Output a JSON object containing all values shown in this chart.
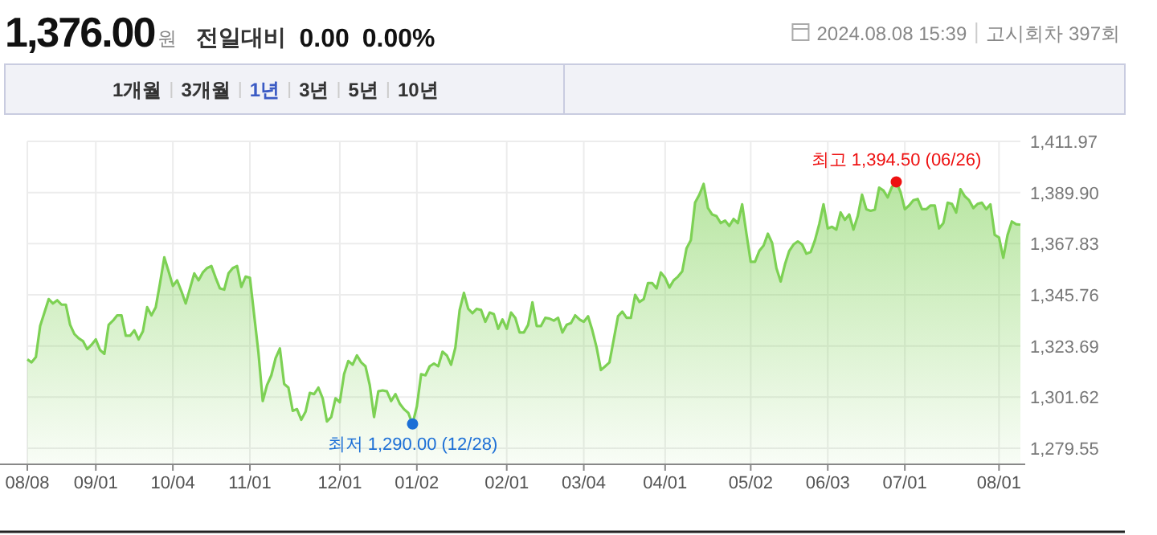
{
  "chart_data": {
    "type": "area",
    "title": "1,376.00",
    "categories": [
      "08/08",
      null,
      null,
      null,
      null,
      null,
      null,
      null,
      null,
      null,
      null,
      null,
      null,
      null,
      null,
      null,
      "09/01",
      null,
      null,
      null,
      null,
      null,
      null,
      null,
      null,
      null,
      null,
      null,
      null,
      null,
      null,
      null,
      null,
      null,
      "10/04",
      null,
      null,
      null,
      null,
      null,
      null,
      null,
      null,
      null,
      null,
      null,
      null,
      null,
      null,
      null,
      null,
      null,
      "11/01",
      null,
      null,
      null,
      null,
      null,
      null,
      null,
      null,
      null,
      null,
      null,
      null,
      null,
      null,
      null,
      null,
      null,
      null,
      null,
      null,
      "12/01",
      null,
      null,
      null,
      null,
      null,
      null,
      null,
      null,
      null,
      null,
      null,
      null,
      null,
      null,
      null,
      null,
      null,
      "01/02",
      null,
      null,
      null,
      null,
      null,
      null,
      null,
      null,
      null,
      null,
      null,
      null,
      null,
      null,
      null,
      null,
      null,
      null,
      null,
      null,
      "02/01",
      null,
      null,
      null,
      null,
      null,
      null,
      null,
      null,
      null,
      null,
      null,
      null,
      null,
      null,
      null,
      null,
      null,
      "03/04",
      null,
      null,
      null,
      null,
      null,
      null,
      null,
      null,
      null,
      null,
      null,
      null,
      null,
      null,
      null,
      null,
      null,
      null,
      "04/01",
      null,
      null,
      null,
      null,
      null,
      null,
      null,
      null,
      null,
      null,
      null,
      null,
      null,
      null,
      null,
      null,
      null,
      null,
      null,
      "05/02",
      null,
      null,
      null,
      null,
      null,
      null,
      null,
      null,
      null,
      null,
      null,
      null,
      null,
      null,
      null,
      null,
      null,
      "06/03",
      null,
      null,
      null,
      null,
      null,
      null,
      null,
      null,
      null,
      null,
      null,
      null,
      null,
      null,
      null,
      null,
      null,
      "07/01",
      null,
      null,
      null,
      null,
      null,
      null,
      null,
      null,
      null,
      null,
      null,
      null,
      null,
      null,
      null,
      null,
      null,
      null,
      null,
      null,
      null,
      "08/01",
      null,
      null,
      null,
      null,
      null
    ],
    "series": [
      {
        "color": "#7dd154",
        "values": [
          1317.9,
          1316.6,
          1318.9,
          1332.3,
          1338.1,
          1343.9,
          1342.0,
          1343.4,
          1341.5,
          1341.5,
          1332.8,
          1328.8,
          1327.0,
          1325.8,
          1322.3,
          1324.2,
          1326.5,
          1321.9,
          1320.3,
          1332.8,
          1334.6,
          1336.9,
          1336.9,
          1328.1,
          1328.1,
          1330.4,
          1326.5,
          1330.0,
          1340.4,
          1336.9,
          1340.4,
          1350.8,
          1361.9,
          1355.9,
          1349.6,
          1352.0,
          1347.3,
          1342.0,
          1348.5,
          1355.0,
          1352.0,
          1355.4,
          1357.3,
          1358.2,
          1353.1,
          1348.5,
          1348.0,
          1355.0,
          1357.3,
          1358.2,
          1349.2,
          1353.6,
          1353.1,
          1336.9,
          1320.7,
          1299.9,
          1306.8,
          1311.0,
          1318.4,
          1322.6,
          1307.3,
          1305.7,
          1295.7,
          1296.4,
          1291.8,
          1295.3,
          1303.4,
          1302.9,
          1305.7,
          1301.1,
          1291.1,
          1293.0,
          1301.1,
          1299.4,
          1311.5,
          1317.2,
          1315.6,
          1319.6,
          1316.6,
          1314.9,
          1306.8,
          1293.0,
          1304.1,
          1304.5,
          1304.1,
          1299.9,
          1302.9,
          1298.8,
          1296.4,
          1294.8,
          1290.0,
          1297.6,
          1311.5,
          1311.0,
          1314.9,
          1316.1,
          1314.9,
          1321.2,
          1319.6,
          1315.6,
          1323.0,
          1339.2,
          1346.6,
          1339.7,
          1337.8,
          1339.7,
          1339.2,
          1334.1,
          1338.1,
          1337.4,
          1331.1,
          1335.1,
          1331.1,
          1338.1,
          1335.8,
          1329.5,
          1329.5,
          1332.8,
          1342.5,
          1332.3,
          1332.3,
          1335.8,
          1335.5,
          1334.6,
          1335.8,
          1329.5,
          1332.8,
          1333.5,
          1336.9,
          1335.1,
          1334.1,
          1336.5,
          1330.4,
          1323.0,
          1313.3,
          1314.9,
          1316.6,
          1326.5,
          1336.5,
          1338.5,
          1335.8,
          1335.8,
          1345.7,
          1342.7,
          1343.9,
          1350.8,
          1350.8,
          1348.5,
          1355.4,
          1353.1,
          1348.9,
          1352.0,
          1353.6,
          1355.9,
          1365.8,
          1369.3,
          1385.5,
          1389.0,
          1393.6,
          1383.2,
          1380.4,
          1379.7,
          1376.7,
          1377.8,
          1375.5,
          1378.5,
          1376.7,
          1384.8,
          1372.1,
          1360.0,
          1360.0,
          1364.7,
          1367.0,
          1372.1,
          1368.1,
          1357.3,
          1351.5,
          1358.9,
          1364.7,
          1367.5,
          1368.8,
          1367.5,
          1363.5,
          1364.2,
          1369.3,
          1376.2,
          1384.8,
          1374.4,
          1375.1,
          1373.9,
          1381.3,
          1378.1,
          1380.4,
          1373.9,
          1379.7,
          1389.0,
          1382.7,
          1382.0,
          1382.5,
          1392.0,
          1390.8,
          1387.8,
          1392.4,
          1394.5,
          1390.1,
          1382.7,
          1384.3,
          1386.6,
          1387.1,
          1382.7,
          1382.7,
          1384.3,
          1384.3,
          1374.4,
          1376.7,
          1385.5,
          1385.0,
          1381.3,
          1391.3,
          1388.3,
          1386.6,
          1383.2,
          1385.0,
          1385.5,
          1382.7,
          1384.8,
          1371.6,
          1370.5,
          1361.7,
          1371.6,
          1377.4,
          1376.2,
          1376.0
        ]
      }
    ],
    "ylim": [
      1272.6,
      1411.97
    ],
    "yticks": [
      {
        "value": 1279.55,
        "label": "1,279.55"
      },
      {
        "value": 1301.62,
        "label": "1,301.62"
      },
      {
        "value": 1323.69,
        "label": "1,323.69"
      },
      {
        "value": 1345.76,
        "label": "1,345.76"
      },
      {
        "value": 1367.83,
        "label": "1,367.83"
      },
      {
        "value": 1389.9,
        "label": "1,389.90"
      },
      {
        "value": 1411.97,
        "label": "1,411.97"
      }
    ],
    "grid": true,
    "annotations": [
      {
        "text": "최고 1,394.50 (06/26)",
        "y": 1394.5
      },
      {
        "text": "최저 1,290.00 (12/28)",
        "y": 1290.0
      },
      "원",
      "전일대비",
      "0.00",
      "0.00%",
      "2024.08.08 15:39",
      "고시회차 397회",
      "1개월",
      "3개월",
      "1년",
      "3년",
      "5년",
      "10년"
    ]
  }
}
